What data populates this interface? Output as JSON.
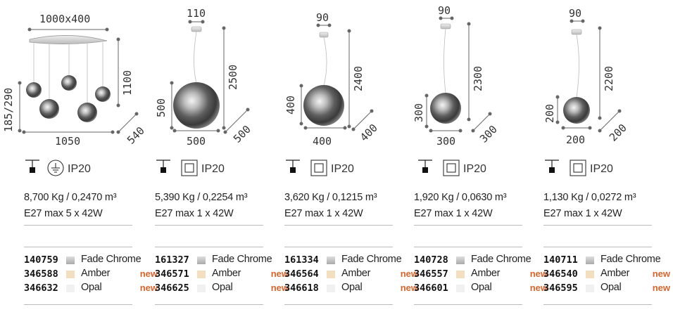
{
  "products": [
    {
      "dims": {
        "top": "1000x400",
        "height": "1100",
        "left": "185/290",
        "bottom": "1050",
        "depth": "540"
      },
      "ip": "IP20",
      "weight": "8,700 Kg / 0,2470 m³",
      "bulb": "E27 max 5 x 42W",
      "variants": [
        {
          "code": "140759",
          "finish": "Fade Chrome",
          "new": ""
        },
        {
          "code": "346588",
          "finish": "Amber",
          "new": "new"
        },
        {
          "code": "346632",
          "finish": "Opal",
          "new": "new"
        }
      ]
    },
    {
      "dims": {
        "top": "110",
        "height": "2500",
        "left": "500",
        "bottom": "500",
        "depth": "500"
      },
      "ip": "IP20",
      "weight": "5,390 Kg / 0,2254 m³",
      "bulb": "E27 max 1 x 42W",
      "variants": [
        {
          "code": "161327",
          "finish": "Fade Chrome",
          "new": ""
        },
        {
          "code": "346571",
          "finish": "Amber",
          "new": "new"
        },
        {
          "code": "346625",
          "finish": "Opal",
          "new": "new"
        }
      ]
    },
    {
      "dims": {
        "top": "90",
        "height": "2400",
        "left": "400",
        "bottom": "400",
        "depth": "400"
      },
      "ip": "IP20",
      "weight": "3,620 Kg / 0,1215 m³",
      "bulb": "E27 max 1 x 42W",
      "variants": [
        {
          "code": "161334",
          "finish": "Fade Chrome",
          "new": ""
        },
        {
          "code": "346564",
          "finish": "Amber",
          "new": "new"
        },
        {
          "code": "346618",
          "finish": "Opal",
          "new": "new"
        }
      ]
    },
    {
      "dims": {
        "top": "90",
        "height": "2300",
        "left": "300",
        "bottom": "300",
        "depth": "300"
      },
      "ip": "IP20",
      "weight": "1,920 Kg / 0,0630 m³",
      "bulb": "E27 max 1 x 42W",
      "variants": [
        {
          "code": "140728",
          "finish": "Fade Chrome",
          "new": ""
        },
        {
          "code": "346557",
          "finish": "Amber",
          "new": "new"
        },
        {
          "code": "346601",
          "finish": "Opal",
          "new": "new"
        }
      ]
    },
    {
      "dims": {
        "top": "90",
        "height": "2200",
        "left": "200",
        "bottom": "200",
        "depth": "200"
      },
      "ip": "IP20",
      "weight": "1,130 Kg / 0,0272 m³",
      "bulb": "E27 max 1 x 42W",
      "variants": [
        {
          "code": "140711",
          "finish": "Fade Chrome",
          "new": ""
        },
        {
          "code": "346540",
          "finish": "Amber",
          "new": "new"
        },
        {
          "code": "346595",
          "finish": "Opal",
          "new": "new"
        }
      ]
    }
  ],
  "swatch_colors": {
    "chrome": "#c9c9c9",
    "amber": "#f3dfbf",
    "opal": "#f1f1f1"
  },
  "new_color": "#d9642b",
  "class1_icon": "class-1-earth-icon",
  "class2_icon": "class-2-double-insulation-icon",
  "mount_icon": "ceiling-mount-icon"
}
